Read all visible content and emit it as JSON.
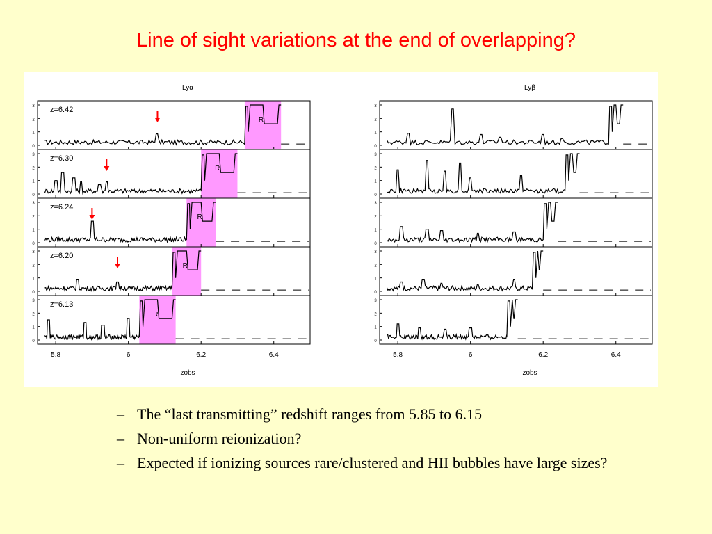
{
  "slide": {
    "title": "Line of sight variations at the end of overlapping?",
    "bullet_marker": "–",
    "bullets": [
      "The “last transmitting” redshift ranges from 5.85 to 6.15",
      "Non-uniform reionization?",
      "Expected if ionizing sources rare/clustered and HII bubbles have large sizes?"
    ]
  },
  "colors": {
    "title": "#ff0000",
    "background": "#ffffcc",
    "shading": "#ff99ff",
    "arrow": "#ff0000"
  },
  "chart_data": {
    "type": "line",
    "xlabel": "zobs",
    "xlim": [
      5.75,
      6.5
    ],
    "xticks": [
      "5.8",
      "6",
      "6.2",
      "6.4"
    ],
    "xtick_values": [
      5.8,
      6.0,
      6.2,
      6.4
    ],
    "ylim": [
      0,
      3
    ],
    "yticks": [
      "0",
      "1",
      "2",
      "3"
    ],
    "panels": [
      {
        "name": "Lyα",
        "rows": [
          {
            "label": "z=6.42",
            "shade": [
              6.32,
              6.42
            ],
            "shade_label": "R",
            "arrow_z": 6.08,
            "spike_z": [
              6.08
            ],
            "spike_h": [
              0.85
            ],
            "rise_z": 6.32,
            "end_z": 6.42
          },
          {
            "label": "z=6.30",
            "shade": [
              6.2,
              6.3
            ],
            "shade_label": "R",
            "arrow_z": 5.94,
            "spike_z": [
              5.8,
              5.82,
              5.85,
              5.87,
              5.92,
              5.94
            ],
            "spike_h": [
              1.0,
              1.6,
              1.2,
              0.9,
              0.7,
              0.9
            ],
            "rise_z": 6.2,
            "end_z": 6.3
          },
          {
            "label": "z=6.24",
            "shade": [
              6.16,
              6.24
            ],
            "shade_label": "R",
            "arrow_z": 5.9,
            "spike_z": [
              5.9
            ],
            "spike_h": [
              1.6
            ],
            "rise_z": 6.16,
            "end_z": 6.24
          },
          {
            "label": "z=6.20",
            "shade": [
              6.12,
              6.2
            ],
            "shade_label": "R",
            "arrow_z": 5.97,
            "spike_z": [
              5.86,
              5.97
            ],
            "spike_h": [
              0.9,
              0.7
            ],
            "rise_z": 6.12,
            "end_z": 6.2
          },
          {
            "label": "z=6.13",
            "shade": [
              6.03,
              6.13
            ],
            "shade_label": "R",
            "arrow_z": null,
            "spike_z": [
              5.78,
              5.88,
              5.93,
              6.0
            ],
            "spike_h": [
              1.5,
              1.3,
              1.1,
              1.6
            ],
            "rise_z": 6.03,
            "end_z": 6.13
          }
        ]
      },
      {
        "name": "Lyβ",
        "rows": [
          {
            "spike_z": [
              5.83,
              5.95,
              6.03,
              6.08,
              6.2,
              6.25
            ],
            "spike_h": [
              0.9,
              2.7,
              0.8,
              0.6,
              0.8,
              0.5
            ],
            "rise_z": 6.38,
            "end_z": 6.42
          },
          {
            "spike_z": [
              5.8,
              5.88,
              5.93,
              5.97,
              6.0,
              6.14
            ],
            "spike_h": [
              1.8,
              2.5,
              1.7,
              2.3,
              1.2,
              1.4
            ],
            "rise_z": 6.26,
            "end_z": 6.3
          },
          {
            "spike_z": [
              5.81,
              5.88,
              5.92,
              6.02,
              6.12
            ],
            "spike_h": [
              1.2,
              1.0,
              0.9,
              0.7,
              0.8
            ],
            "rise_z": 6.2,
            "end_z": 6.24
          },
          {
            "spike_z": [
              5.81,
              5.87,
              5.92,
              6.02,
              6.12
            ],
            "spike_h": [
              0.7,
              0.9,
              0.6,
              0.5,
              0.9
            ],
            "rise_z": 6.17,
            "end_z": 6.2
          },
          {
            "spike_z": [
              5.8,
              5.86,
              5.93,
              6.0
            ],
            "spike_h": [
              1.2,
              0.9,
              0.8,
              0.9
            ],
            "rise_z": 6.1,
            "end_z": 6.13
          }
        ]
      }
    ]
  }
}
